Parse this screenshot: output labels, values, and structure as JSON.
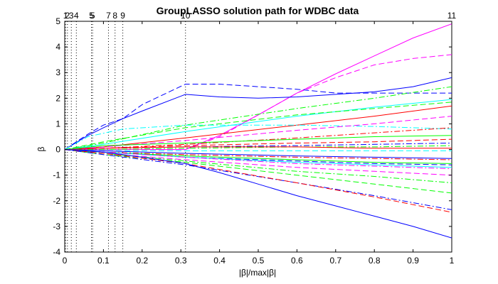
{
  "chart_data": {
    "type": "line",
    "title": "GroupLASSO solution path for WDBC data",
    "xlabel": "|β|/max|β|",
    "ylabel": "β",
    "xlim": [
      0,
      1
    ],
    "ylim": [
      -4,
      5
    ],
    "x_ticks": [
      "0",
      "0.1",
      "0.2",
      "0.3",
      "0.4",
      "0.5",
      "0.6",
      "0.7",
      "0.8",
      "0.9",
      "1"
    ],
    "y_ticks": [
      "-4",
      "-3",
      "-2",
      "-1",
      "0",
      "1",
      "2",
      "3",
      "4",
      "5"
    ],
    "grid": false,
    "legend": "none",
    "group_entry_labels": [
      "1",
      "2",
      "3",
      "4",
      "5",
      "5",
      "7",
      "8",
      "9",
      "10",
      "11"
    ],
    "group_entry_x": [
      0.002,
      0.007,
      0.017,
      0.03,
      0.069,
      0.072,
      0.113,
      0.13,
      0.15,
      0.312,
      1.0
    ],
    "series": [
      {
        "color": "#ff00ff",
        "dash": "solid",
        "x": [
          0,
          0.312,
          0.4,
          0.5,
          0.6,
          0.7,
          0.8,
          0.9,
          1.0
        ],
        "y": [
          0,
          0,
          0.55,
          1.35,
          2.2,
          2.95,
          3.65,
          4.35,
          4.9
        ]
      },
      {
        "color": "#ff00ff",
        "dash": "dashed",
        "x": [
          0,
          0.312,
          0.4,
          0.5,
          0.6,
          0.7,
          0.8,
          0.9,
          1.0
        ],
        "y": [
          0,
          0,
          0.5,
          1.35,
          2.2,
          2.8,
          3.3,
          3.55,
          3.7
        ]
      },
      {
        "color": "#0000ff",
        "dash": "solid",
        "x": [
          0,
          0.06,
          0.1,
          0.15,
          0.2,
          0.312,
          0.4,
          0.5,
          0.6,
          0.7,
          0.8,
          0.9,
          1.0
        ],
        "y": [
          0,
          0.55,
          0.85,
          1.2,
          1.5,
          2.15,
          2.05,
          2.0,
          2.05,
          2.15,
          2.25,
          2.45,
          2.8
        ]
      },
      {
        "color": "#0000ff",
        "dash": "dashed",
        "x": [
          0,
          0.06,
          0.1,
          0.15,
          0.2,
          0.312,
          0.4,
          0.5,
          0.6,
          0.7,
          0.8,
          0.9,
          1.0
        ],
        "y": [
          0,
          0.6,
          0.95,
          1.2,
          1.75,
          2.55,
          2.55,
          2.45,
          2.35,
          2.2,
          2.2,
          2.2,
          2.2
        ]
      },
      {
        "color": "#00ff00",
        "dash": "dashdot",
        "x": [
          0,
          0.1,
          0.312,
          0.6,
          0.8,
          1.0
        ],
        "y": [
          0,
          0.25,
          0.95,
          1.6,
          2.0,
          2.45
        ]
      },
      {
        "color": "#00ffff",
        "dash": "solid",
        "x": [
          0,
          0.1,
          0.312,
          0.6,
          0.8,
          1.0
        ],
        "y": [
          0,
          0.2,
          0.7,
          1.3,
          1.65,
          1.95
        ]
      },
      {
        "color": "#00ff00",
        "dash": "dashed",
        "x": [
          0,
          0.1,
          0.312,
          0.6,
          0.8,
          1.0
        ],
        "y": [
          0,
          0.3,
          0.85,
          1.35,
          1.6,
          1.85
        ]
      },
      {
        "color": "#ff0000",
        "dash": "solid",
        "x": [
          0,
          0.1,
          0.312,
          0.6,
          0.8,
          1.0
        ],
        "y": [
          0,
          0.1,
          0.45,
          0.95,
          1.3,
          1.7
        ]
      },
      {
        "color": "#00ffff",
        "dash": "dashdot",
        "x": [
          0,
          0.06,
          0.15,
          0.312,
          0.6,
          0.8,
          1.0
        ],
        "y": [
          0,
          0.5,
          0.8,
          0.95,
          0.95,
          0.9,
          0.8
        ]
      },
      {
        "color": "#ff00ff",
        "dash": "dashed",
        "x": [
          0,
          0.1,
          0.312,
          0.6,
          0.8,
          1.0
        ],
        "y": [
          0,
          0.1,
          0.35,
          0.75,
          1.0,
          1.3
        ]
      },
      {
        "color": "#ff0000",
        "dash": "dashdot",
        "x": [
          0,
          0.1,
          0.312,
          0.6,
          0.8,
          1.0
        ],
        "y": [
          0,
          0.05,
          0.2,
          0.45,
          0.65,
          0.85
        ]
      },
      {
        "color": "#00ff00",
        "dash": "solid",
        "x": [
          0,
          0.1,
          0.312,
          0.6,
          0.8,
          1.0
        ],
        "y": [
          0,
          0.15,
          0.25,
          0.4,
          0.5,
          0.55
        ]
      },
      {
        "color": "#ff0000",
        "dash": "dashed",
        "x": [
          0,
          0.1,
          0.312,
          0.6,
          0.8,
          1.0
        ],
        "y": [
          0,
          0.05,
          0.15,
          0.25,
          0.3,
          0.4
        ]
      },
      {
        "color": "#0000ff",
        "dash": "dashdot",
        "x": [
          0,
          0.1,
          0.312,
          0.6,
          0.8,
          1.0
        ],
        "y": [
          0,
          0.05,
          0.1,
          0.15,
          0.2,
          0.25
        ]
      },
      {
        "color": "#00ff00",
        "dash": "dashdot",
        "x": [
          0,
          0.1,
          0.312,
          0.6,
          0.8,
          1.0
        ],
        "y": [
          0,
          0.0,
          0.05,
          0.1,
          0.1,
          0.15
        ]
      },
      {
        "color": "#ff0000",
        "dash": "solid",
        "x": [
          0,
          0.1,
          0.312,
          0.6,
          0.8,
          1.0
        ],
        "y": [
          0,
          0.05,
          0.1,
          0.1,
          0.05,
          0.05
        ]
      },
      {
        "color": "#00ffff",
        "dash": "dashed",
        "x": [
          0,
          0.1,
          0.312,
          0.6,
          0.8,
          1.0
        ],
        "y": [
          0,
          -0.05,
          -0.05,
          -0.05,
          -0.05,
          -0.05
        ]
      },
      {
        "color": "#0000ff",
        "dash": "solid",
        "x": [
          0,
          0.1,
          0.312,
          0.6,
          0.8,
          1.0
        ],
        "y": [
          0,
          -0.05,
          -0.15,
          -0.25,
          -0.3,
          -0.35
        ]
      },
      {
        "color": "#ff0000",
        "dash": "dashdot",
        "x": [
          0,
          0.1,
          0.312,
          0.6,
          0.8,
          1.0
        ],
        "y": [
          0,
          -0.1,
          -0.2,
          -0.3,
          -0.35,
          -0.4
        ]
      },
      {
        "color": "#00ff00",
        "dash": "solid",
        "x": [
          0,
          0.1,
          0.312,
          0.6,
          0.8,
          1.0
        ],
        "y": [
          0,
          -0.1,
          -0.25,
          -0.4,
          -0.5,
          -0.55
        ]
      },
      {
        "color": "#0000ff",
        "dash": "dashed",
        "x": [
          0,
          0.1,
          0.312,
          0.6,
          0.8,
          1.0
        ],
        "y": [
          0,
          -0.1,
          -0.3,
          -0.45,
          -0.55,
          -0.6
        ]
      },
      {
        "color": "#00ffff",
        "dash": "solid",
        "x": [
          0,
          0.1,
          0.312,
          0.6,
          0.8,
          1.0
        ],
        "y": [
          0,
          -0.1,
          -0.3,
          -0.5,
          -0.6,
          -0.7
        ]
      },
      {
        "color": "#ff00ff",
        "dash": "dashdot",
        "x": [
          0,
          0.1,
          0.312,
          0.6,
          0.8,
          1.0
        ],
        "y": [
          0,
          -0.1,
          -0.3,
          -0.55,
          -0.65,
          -0.75
        ]
      },
      {
        "color": "#ff00ff",
        "dash": "dashed",
        "x": [
          0,
          0.1,
          0.312,
          0.6,
          0.8,
          1.0
        ],
        "y": [
          0,
          -0.15,
          -0.4,
          -0.7,
          -0.85,
          -1.0
        ]
      },
      {
        "color": "#00ff00",
        "dash": "dashdot",
        "x": [
          0,
          0.1,
          0.312,
          0.6,
          0.8,
          1.0
        ],
        "y": [
          0,
          -0.15,
          -0.45,
          -0.85,
          -1.05,
          -1.3
        ]
      },
      {
        "color": "#00ff00",
        "dash": "dashed",
        "x": [
          0,
          0.1,
          0.312,
          0.6,
          0.8,
          1.0
        ],
        "y": [
          0,
          -0.2,
          -0.5,
          -1.0,
          -1.35,
          -1.7
        ]
      },
      {
        "color": "#0000ff",
        "dash": "dashdot",
        "x": [
          0,
          0.1,
          0.312,
          0.6,
          0.8,
          1.0
        ],
        "y": [
          0,
          -0.2,
          -0.6,
          -1.3,
          -1.8,
          -2.35
        ]
      },
      {
        "color": "#ff0000",
        "dash": "dashed",
        "x": [
          0,
          0.1,
          0.312,
          0.6,
          0.8,
          1.0
        ],
        "y": [
          0,
          -0.15,
          -0.55,
          -1.3,
          -1.85,
          -2.45
        ]
      },
      {
        "color": "#0000ff",
        "dash": "solid",
        "x": [
          0,
          0.1,
          0.2,
          0.312,
          0.4,
          0.5,
          0.6,
          0.7,
          0.8,
          0.9,
          1.0
        ],
        "y": [
          0,
          -0.1,
          -0.3,
          -0.55,
          -0.9,
          -1.35,
          -1.8,
          -2.2,
          -2.6,
          -3.0,
          -3.45
        ]
      }
    ]
  }
}
